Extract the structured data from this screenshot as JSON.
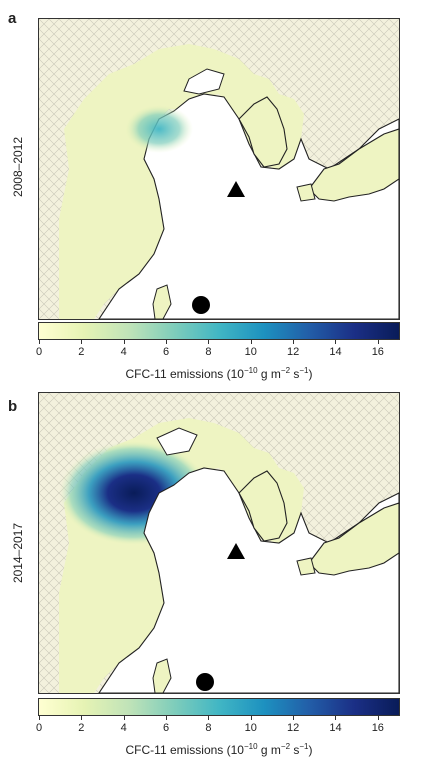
{
  "panels": [
    {
      "letter": "a",
      "period": "2008–2012"
    },
    {
      "letter": "b",
      "period": "2014–2017"
    }
  ],
  "colorbar": {
    "ticks": [
      "0",
      "2",
      "4",
      "6",
      "8",
      "10",
      "12",
      "14",
      "16"
    ],
    "min": 0,
    "max": 17,
    "label_prefix": "CFC-11 emissions (10",
    "exp1": "−10",
    "label_mid": " g m",
    "exp2": "−2",
    "label_mid2": " s",
    "exp3": "−1",
    "label_suffix": ")",
    "colors": [
      "#ffffd2",
      "#e6f3b4",
      "#c0e3b8",
      "#7fcdbb",
      "#41b6c4",
      "#1d91c0",
      "#225ea8",
      "#1b2f86",
      "#091c59"
    ]
  },
  "markers": {
    "triangle": "triangle-site-marker",
    "circle": "circle-site-marker"
  }
}
